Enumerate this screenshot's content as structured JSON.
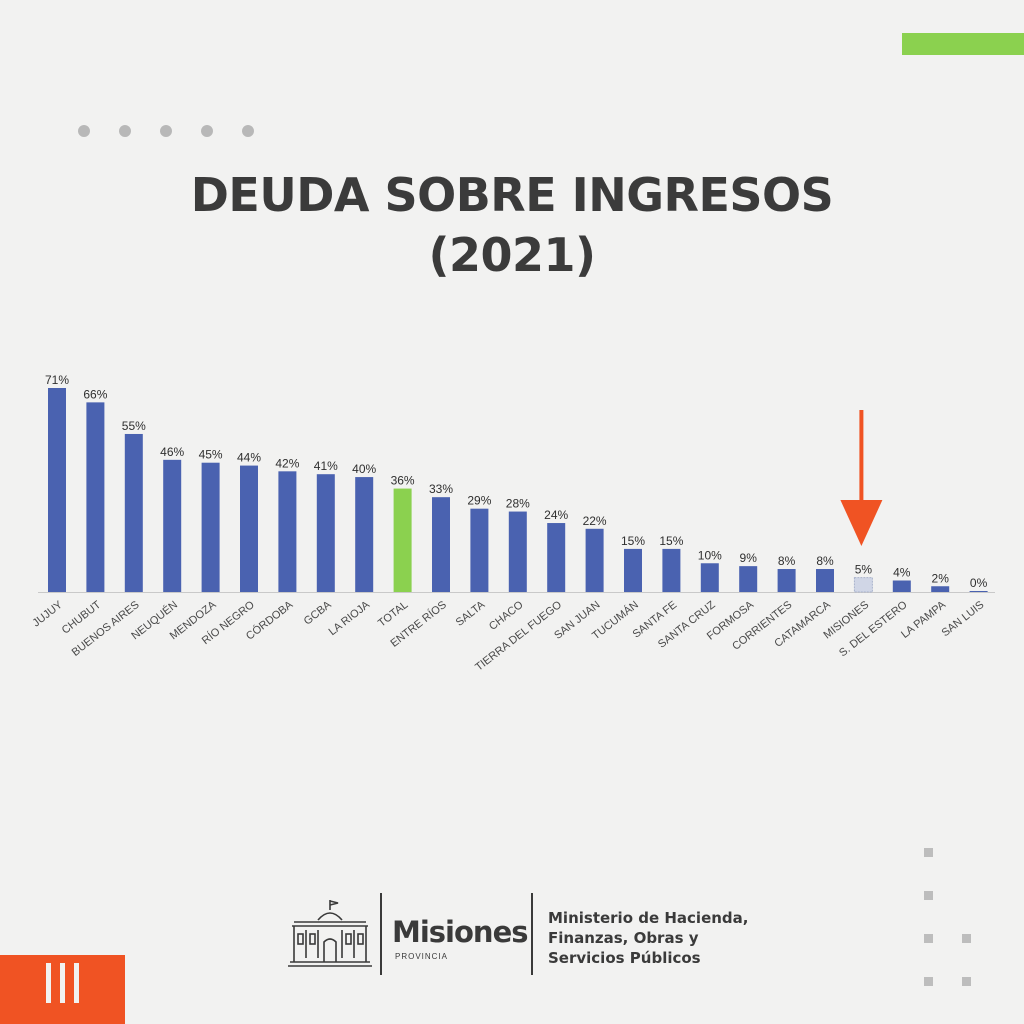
{
  "header": {
    "title_line1": "DEUDA SOBRE INGRESOS",
    "title_line2": "(2021)"
  },
  "colors": {
    "accent_green": "#8bd14f",
    "accent_orange": "#f05323",
    "bar_blue": "#4a62b0",
    "bar_total": "#8bd14f",
    "bar_highlight": "#d0d6e6"
  },
  "chart_data": {
    "type": "bar",
    "title": "DEUDA SOBRE INGRESOS (2021)",
    "categories": [
      "JUJUY",
      "CHUBUT",
      "BUENOS AIRES",
      "NEUQUÉN",
      "MENDOZA",
      "RÍO NEGRO",
      "CÓRDOBA",
      "GCBA",
      "LA RIOJA",
      "TOTAL",
      "ENTRE RÍOS",
      "SALTA",
      "CHACO",
      "TIERRA DEL FUEGO",
      "SAN JUAN",
      "TUCUMÁN",
      "SANTA FE",
      "SANTA CRUZ",
      "FORMOSA",
      "CORRIENTES",
      "CATAMARCA",
      "MISIONES",
      "S. DEL ESTERO",
      "LA PAMPA",
      "SAN LUIS"
    ],
    "values": [
      71,
      66,
      55,
      46,
      45,
      44,
      42,
      41,
      40,
      36,
      33,
      29,
      28,
      24,
      22,
      15,
      15,
      10,
      9,
      8,
      8,
      5,
      4,
      2,
      0
    ],
    "value_labels": [
      "71%",
      "66%",
      "55%",
      "46%",
      "45%",
      "44%",
      "42%",
      "41%",
      "40%",
      "36%",
      "33%",
      "29%",
      "28%",
      "24%",
      "22%",
      "15%",
      "15%",
      "10%",
      "9%",
      "8%",
      "8%",
      "5%",
      "4%",
      "2%",
      "0%"
    ],
    "ylim": [
      0,
      71
    ],
    "unit": "%",
    "highlight_category": "MISIONES",
    "total_category": "TOTAL",
    "annotations": [
      "arrow pointing to MISIONES"
    ],
    "grid": false,
    "legend": "none"
  },
  "footer": {
    "brand": "Misiones",
    "brand_sub": "PROVINCIA",
    "ministry_lines": [
      "Ministerio de Hacienda,",
      "Finanzas, Obras y",
      "Servicios Públicos"
    ]
  },
  "icons": [
    "government-building-icon",
    "arrow-down-icon"
  ]
}
